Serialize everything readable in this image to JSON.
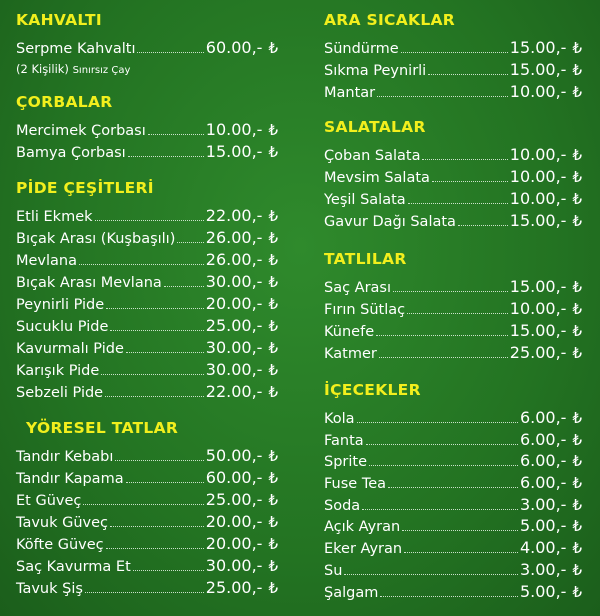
{
  "currency_symbol": "₺",
  "colors": {
    "background": "#237322",
    "heading": "#f2ef1d",
    "text": "#ffffff"
  },
  "sections": {
    "kahvalti": {
      "title": "KAHVALTI",
      "items": [
        {
          "name": "Serpme Kahvaltı",
          "price": "60.00,-"
        }
      ],
      "note_a": "(2 Kişilik)",
      "note_b": "Sınırsız Çay"
    },
    "corbalar": {
      "title": "ÇORBALAR",
      "items": [
        {
          "name": "Mercimek Çorbası",
          "price": "10.00,-"
        },
        {
          "name": "Bamya Çorbası",
          "price": "15.00,-"
        }
      ]
    },
    "pide": {
      "title": "PİDE ÇEŞİTLERİ",
      "items": [
        {
          "name": "Etli Ekmek",
          "price": "22.00,-"
        },
        {
          "name": "Bıçak Arası (Kuşbaşılı)",
          "price": "26.00,-"
        },
        {
          "name": "Mevlana",
          "price": "26.00,-"
        },
        {
          "name": "Bıçak Arası Mevlana",
          "price": "30.00,-"
        },
        {
          "name": "Peynirli Pide",
          "price": "20.00,-"
        },
        {
          "name": "Sucuklu Pide",
          "price": "25.00,-"
        },
        {
          "name": "Kavurmalı Pide",
          "price": "30.00,-"
        },
        {
          "name": "Karışık Pide",
          "price": "30.00,-"
        },
        {
          "name": "Sebzeli Pide",
          "price": "22.00,-"
        }
      ]
    },
    "yoresel": {
      "title": "YÖRESEL TATLAR",
      "items": [
        {
          "name": "Tandır Kebabı",
          "price": "50.00,-"
        },
        {
          "name": "Tandır Kapama",
          "price": "60.00,-"
        },
        {
          "name": "Et Güveç",
          "price": "25.00,-"
        },
        {
          "name": "Tavuk Güveç",
          "price": "20.00,-"
        },
        {
          "name": "Köfte Güveç",
          "price": "20.00,-"
        },
        {
          "name": "Saç Kavurma Et",
          "price": "30.00,-"
        },
        {
          "name": "Tavuk Şiş",
          "price": "25.00,-"
        }
      ]
    },
    "ara": {
      "title": "ARA SICAKLAR",
      "items": [
        {
          "name": "Sündürme",
          "price": "15.00,-"
        },
        {
          "name": "Sıkma Peynirli",
          "price": "15.00,-"
        },
        {
          "name": "Mantar",
          "price": "10.00,-"
        }
      ]
    },
    "salatalar": {
      "title": "SALATALAR",
      "items": [
        {
          "name": "Çoban Salata",
          "price": "10.00,-"
        },
        {
          "name": "Mevsim Salata",
          "price": "10.00,-"
        },
        {
          "name": "Yeşil Salata",
          "price": "10.00,-"
        },
        {
          "name": "Gavur Dağı Salata",
          "price": "15.00,-"
        }
      ]
    },
    "tatlilar": {
      "title": "TATLILAR",
      "items": [
        {
          "name": "Saç Arası",
          "price": "15.00,-"
        },
        {
          "name": "Fırın Sütlaç",
          "price": "10.00,-"
        },
        {
          "name": "Künefe",
          "price": "15.00,-"
        },
        {
          "name": "Katmer",
          "price": "25.00,-"
        }
      ]
    },
    "icecekler": {
      "title": "İÇECEKLER",
      "items": [
        {
          "name": "Kola",
          "price": "6.00,-"
        },
        {
          "name": "Fanta",
          "price": "6.00,-"
        },
        {
          "name": "Sprite",
          "price": "6.00,-"
        },
        {
          "name": "Fuse Tea",
          "price": "6.00,-"
        },
        {
          "name": "Soda",
          "price": "3.00,-"
        },
        {
          "name": "Açık Ayran",
          "price": "5.00,-"
        },
        {
          "name": "Eker Ayran",
          "price": "4.00,-"
        },
        {
          "name": "Su",
          "price": "3.00,-"
        },
        {
          "name": "Şalgam",
          "price": "5.00,-"
        }
      ]
    }
  }
}
